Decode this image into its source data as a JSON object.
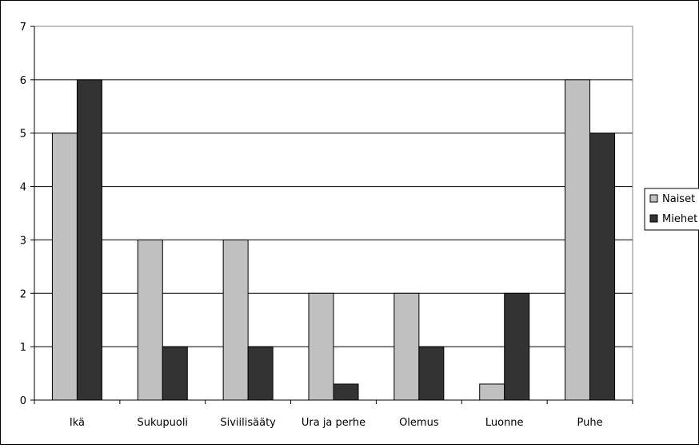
{
  "chart_data": {
    "type": "bar",
    "categories": [
      "Ikä",
      "Sukupuoli",
      "Siviilisääty",
      "Ura ja perhe",
      "Olemus",
      "Luonne",
      "Puhe"
    ],
    "series": [
      {
        "name": "Naiset",
        "values": [
          5,
          3,
          3,
          2,
          2,
          0.3,
          6
        ],
        "color": "#c0c0c0"
      },
      {
        "name": "Miehet",
        "values": [
          6,
          1,
          1,
          0.3,
          1,
          2,
          5
        ],
        "color": "#333333"
      }
    ],
    "yticks": [
      "0",
      "1",
      "2",
      "3",
      "4",
      "5",
      "6",
      "7"
    ],
    "ylim": [
      0,
      7
    ],
    "grid": true,
    "legend": "right",
    "title": "",
    "xlabel": "",
    "ylabel": ""
  }
}
